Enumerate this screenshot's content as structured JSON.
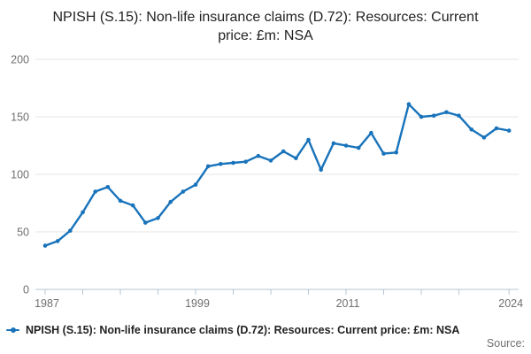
{
  "title": "NPISH (S.15): Non-life insurance claims (D.72): Resources: Current price: £m: NSA",
  "legend": {
    "label": "NPISH (S.15): Non-life insurance claims (D.72): Resources: Current price: £m: NSA"
  },
  "source_label": "Source:",
  "colors": {
    "line": "#1873bb",
    "grid": "#e6e6e6",
    "axis": "#b6c4d3",
    "tick_text": "#6f6f6f",
    "title_text": "#222222",
    "source_text": "#707070"
  },
  "chart_data": {
    "type": "line",
    "title": "NPISH (S.15): Non-life insurance claims (D.72): Resources: Current price: £m: NSA",
    "xlabel": "",
    "ylabel": "",
    "grid": "horizontal",
    "legend_position": "bottom",
    "ylim": [
      0,
      200
    ],
    "yticks": [
      0,
      50,
      100,
      150,
      200
    ],
    "xticks": [
      1987,
      1990,
      1993,
      1996,
      1999,
      2002,
      2005,
      2008,
      2011,
      2014,
      2017,
      2020,
      2024
    ],
    "xtick_labeled": [
      1987,
      1999,
      2011,
      2024
    ],
    "x": [
      1987,
      1988,
      1989,
      1990,
      1991,
      1992,
      1993,
      1994,
      1995,
      1996,
      1997,
      1998,
      1999,
      2000,
      2001,
      2002,
      2003,
      2004,
      2005,
      2006,
      2007,
      2008,
      2009,
      2010,
      2011,
      2012,
      2013,
      2014,
      2015,
      2016,
      2017,
      2018,
      2019,
      2020,
      2021,
      2022,
      2023,
      2024
    ],
    "values": [
      38,
      42,
      51,
      67,
      85,
      89,
      77,
      73,
      58,
      62,
      76,
      85,
      91,
      107,
      109,
      110,
      111,
      116,
      112,
      120,
      114,
      130,
      104,
      127,
      125,
      123,
      136,
      118,
      119,
      161,
      150,
      151,
      154,
      151,
      139,
      132,
      140,
      138
    ],
    "series_name": "NPISH (S.15): Non-life insurance claims (D.72): Resources: Current price: £m: NSA"
  }
}
